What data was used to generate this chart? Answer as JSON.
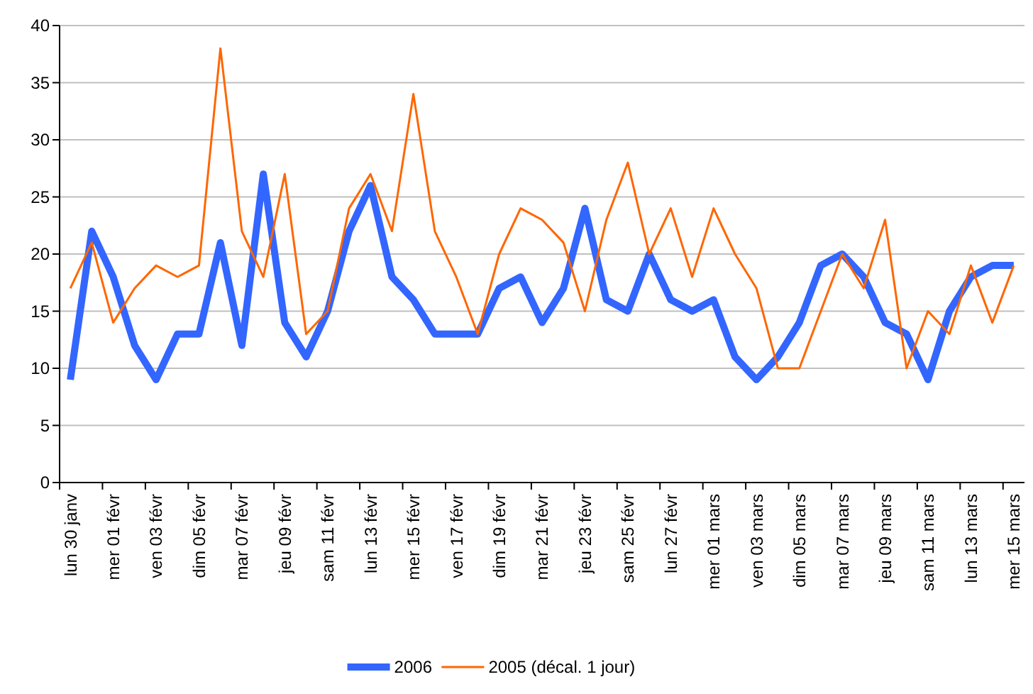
{
  "chart_data": {
    "type": "line",
    "categories": [
      "lun 30 janv",
      null,
      "mer 01 févr",
      null,
      "ven 03 févr",
      null,
      "dim 05 févr",
      null,
      "mar 07 févr",
      null,
      "jeu 09 févr",
      null,
      "sam 11 févr",
      null,
      "lun 13 févr",
      null,
      "mer 15 févr",
      null,
      "ven 17 févr",
      null,
      "dim 19 févr",
      null,
      "mar 21 févr",
      null,
      "jeu 23 févr",
      null,
      "sam 25 févr",
      null,
      "lun 27 févr",
      null,
      "mer 01 mars",
      null,
      "ven 03 mars",
      null,
      "dim 05 mars",
      null,
      "mar 07 mars",
      null,
      "jeu 09 mars",
      null,
      "sam 11 mars",
      null,
      "lun 13 mars",
      null,
      "mer 15 mars"
    ],
    "series": [
      {
        "name": "2006",
        "color": "#3366ff",
        "values": [
          9,
          22,
          18,
          12,
          9,
          13,
          13,
          21,
          12,
          27,
          14,
          11,
          15,
          22,
          26,
          18,
          16,
          13,
          13,
          13,
          17,
          18,
          14,
          17,
          24,
          16,
          15,
          20,
          16,
          15,
          16,
          11,
          9,
          11,
          14,
          19,
          20,
          18,
          14,
          13,
          9,
          15,
          18,
          19,
          19
        ]
      },
      {
        "name": "2005 (décal. 1 jour)",
        "color": "#ff6600",
        "values": [
          17,
          21,
          14,
          17,
          19,
          18,
          19,
          38,
          22,
          18,
          27,
          13,
          15,
          24,
          27,
          22,
          34,
          22,
          18,
          13,
          20,
          24,
          23,
          21,
          15,
          23,
          28,
          20,
          24,
          18,
          24,
          20,
          17,
          10,
          10,
          15,
          20,
          17,
          23,
          10,
          15,
          13,
          19,
          14,
          19
        ]
      }
    ],
    "ylim": [
      0,
      40
    ],
    "yticks": [
      0,
      5,
      10,
      15,
      20,
      25,
      30,
      35,
      40
    ],
    "grid": "y",
    "legend": "bottom",
    "marker": "none",
    "line_style": "solid"
  }
}
